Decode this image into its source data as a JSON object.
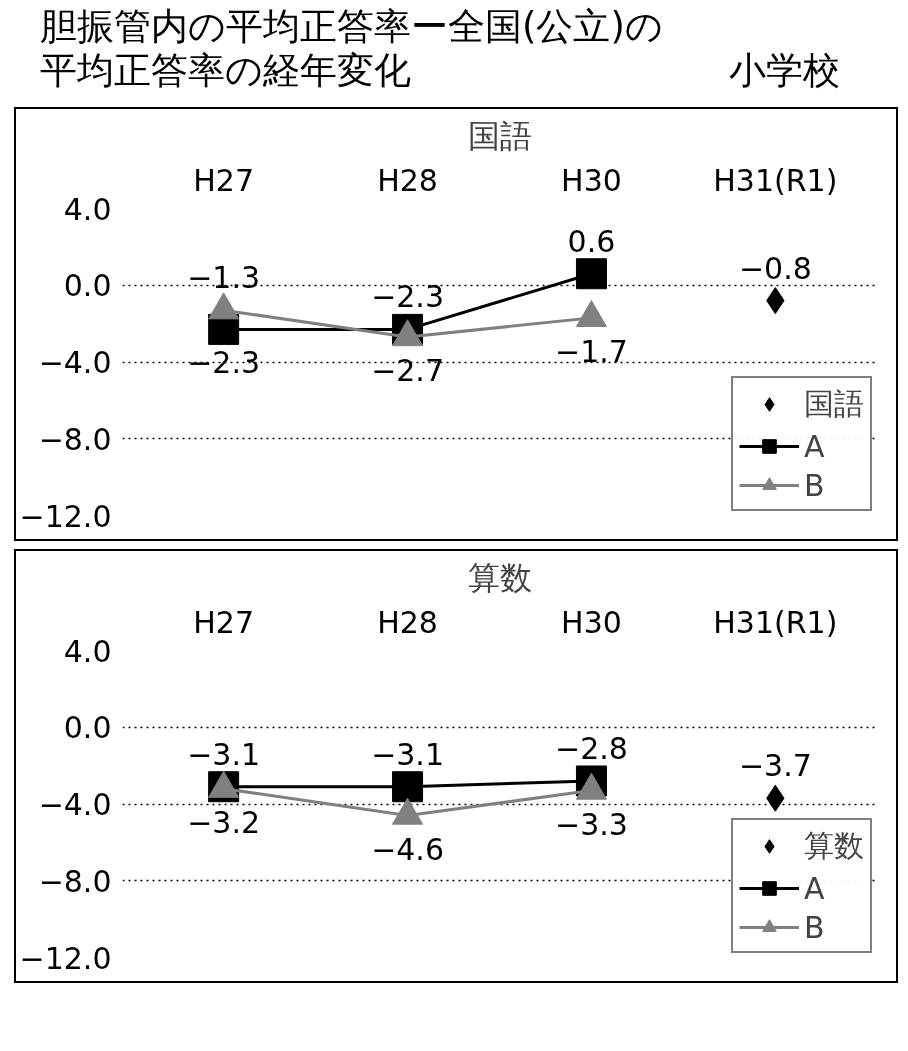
{
  "chart_data": [
    {
      "type": "line",
      "title": "胆振管内の平均正答率ー全国(公立)の平均正答率の経年変化",
      "annotations": [
        "小学校"
      ],
      "subtitle": "国語",
      "categories": [
        "H27",
        "H28",
        "H30",
        "H31(R1)"
      ],
      "ylim": [
        -12,
        4
      ],
      "yticks": [
        {
          "value": 4,
          "label": "4.0"
        },
        {
          "value": 0,
          "label": "0.0"
        },
        {
          "value": -4,
          "label": "−4.0"
        },
        {
          "value": -8,
          "label": "−8.0"
        },
        {
          "value": -12,
          "label": "−12.0"
        }
      ],
      "grid": "y",
      "legend": "bottom right",
      "series": [
        {
          "name": "国語",
          "color": "#000000",
          "marker": "diamond",
          "line_style": "none",
          "values": [
            null,
            null,
            null,
            -0.8
          ],
          "value_labels": [
            null,
            null,
            null,
            "−0.8"
          ]
        },
        {
          "name": "A",
          "color": "#000000",
          "marker": "square",
          "line_style": "solid",
          "values": [
            -2.3,
            -2.3,
            0.6,
            null
          ],
          "value_labels": [
            "−2.3",
            "−2.3",
            "0.6",
            null
          ]
        },
        {
          "name": "B",
          "color": "#808080",
          "marker": "triangle",
          "line_style": "solid",
          "values": [
            -1.3,
            -2.7,
            -1.7,
            null
          ],
          "value_labels": [
            "−1.3",
            "−2.7",
            "−1.7",
            null
          ]
        }
      ]
    },
    {
      "type": "line",
      "subtitle": "算数",
      "categories": [
        "H27",
        "H28",
        "H30",
        "H31(R1)"
      ],
      "ylim": [
        -12,
        4
      ],
      "yticks": [
        {
          "value": 4,
          "label": "4.0"
        },
        {
          "value": 0,
          "label": "0.0"
        },
        {
          "value": -4,
          "label": "−4.0"
        },
        {
          "value": -8,
          "label": "−8.0"
        },
        {
          "value": -12,
          "label": "−12.0"
        }
      ],
      "grid": "y",
      "legend": "bottom right",
      "series": [
        {
          "name": "算数",
          "color": "#000000",
          "marker": "diamond",
          "line_style": "none",
          "values": [
            null,
            null,
            null,
            -3.7
          ],
          "value_labels": [
            null,
            null,
            null,
            "−3.7"
          ]
        },
        {
          "name": "A",
          "color": "#000000",
          "marker": "square",
          "line_style": "solid",
          "values": [
            -3.1,
            -3.1,
            -2.8,
            null
          ],
          "value_labels": [
            "−3.1",
            "−3.1",
            "−2.8",
            null
          ]
        },
        {
          "name": "B",
          "color": "#808080",
          "marker": "triangle",
          "line_style": "solid",
          "values": [
            -3.2,
            -4.6,
            -3.3,
            null
          ],
          "value_labels": [
            "−3.2",
            "−4.6",
            "−3.3",
            null
          ]
        }
      ]
    }
  ]
}
